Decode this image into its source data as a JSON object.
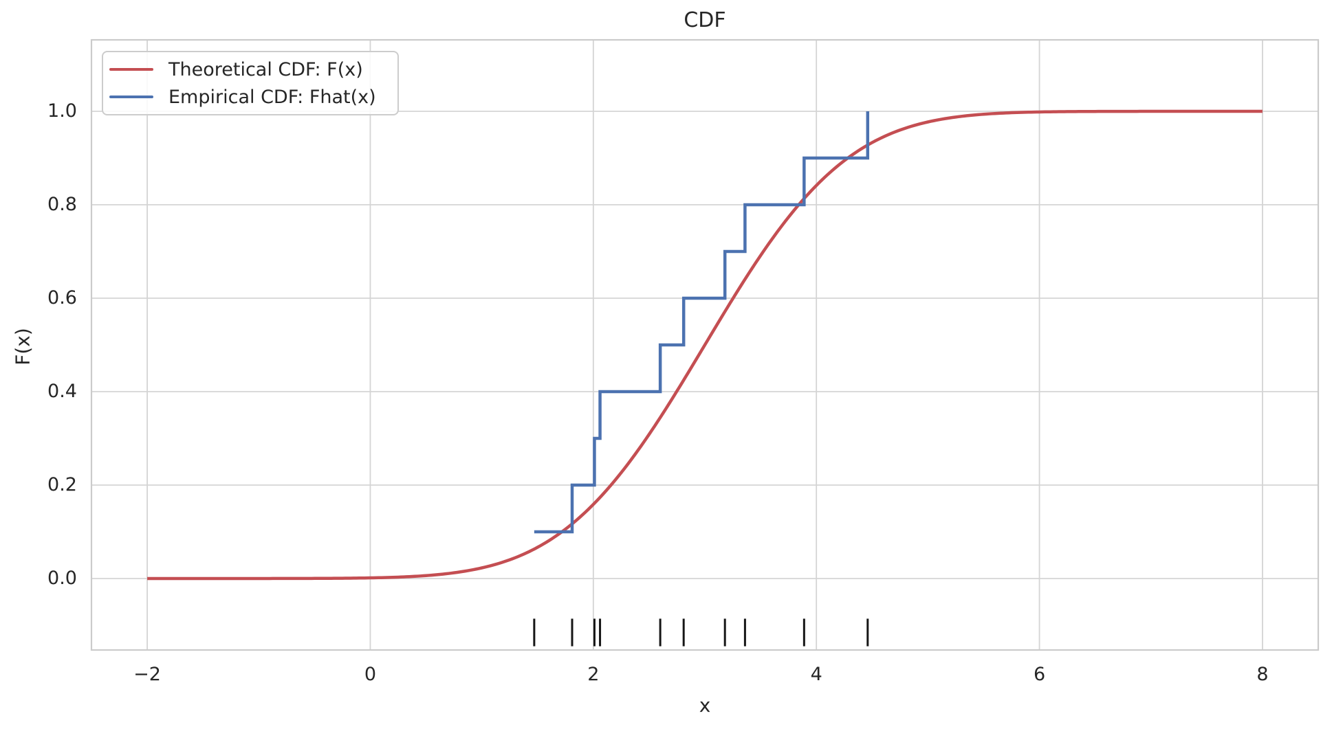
{
  "chart_data": {
    "type": "line",
    "title": "CDF",
    "xlabel": "x",
    "ylabel": "F(x)",
    "xlim": [
      -2.5,
      8.5
    ],
    "ylim": [
      -0.153,
      1.153
    ],
    "grid": true,
    "x_ticks": {
      "values": [
        -2,
        0,
        2,
        4,
        6,
        8
      ],
      "labels": [
        "−2",
        "0",
        "2",
        "4",
        "6",
        "8"
      ]
    },
    "y_ticks": {
      "values": [
        0.0,
        0.2,
        0.4,
        0.6,
        0.8,
        1.0
      ],
      "labels": [
        "0.0",
        "0.2",
        "0.4",
        "0.6",
        "0.8",
        "1.0"
      ]
    },
    "legend": {
      "position": "upper-left"
    },
    "series": [
      {
        "name": "Theoretical CDF: F(x)",
        "curve": "normal_cdf",
        "color": "#c44e52",
        "mean": 3,
        "sd": 1,
        "x_start": -2,
        "x_end": 8
      },
      {
        "name": "Empirical CDF: Fhat(x)",
        "curve": "step_post",
        "color": "#4c72b0",
        "x": [
          1.47,
          1.81,
          2.01,
          2.06,
          2.6,
          2.81,
          3.18,
          3.36,
          3.89,
          4.46
        ],
        "y": [
          0.1,
          0.2,
          0.3,
          0.4,
          0.5,
          0.6,
          0.7,
          0.8,
          0.9,
          1.0
        ]
      }
    ],
    "rug": {
      "x": [
        1.47,
        1.81,
        2.01,
        2.06,
        2.6,
        2.81,
        3.18,
        3.36,
        3.89,
        4.46
      ],
      "y_top": -0.086,
      "y_bottom": -0.145,
      "color": "#161616"
    }
  }
}
